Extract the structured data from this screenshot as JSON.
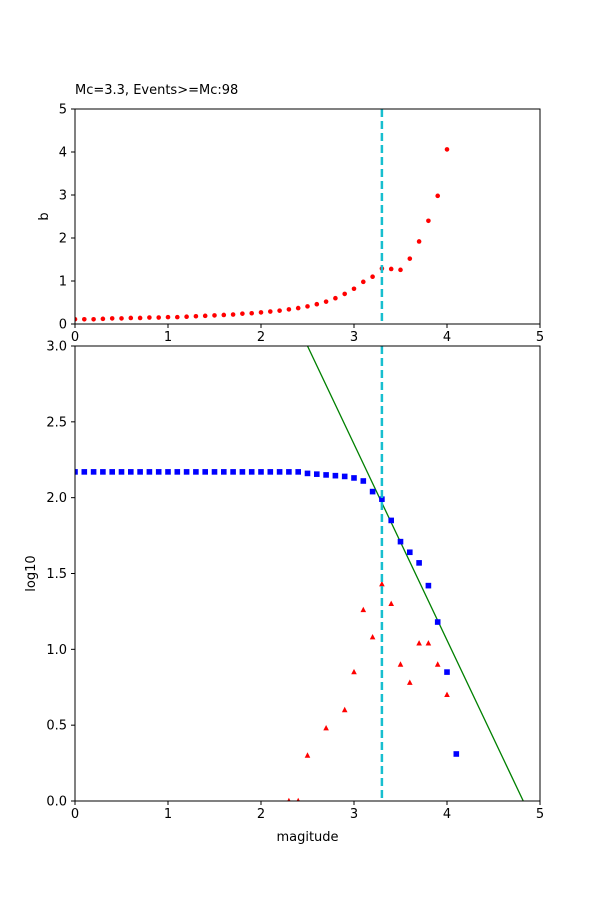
{
  "chart_data": [
    {
      "type": "scatter",
      "title": "Mc=3.3, Events>=Mc:98",
      "xlabel": "",
      "ylabel": "b",
      "xlim": [
        0,
        5
      ],
      "ylim": [
        0,
        5
      ],
      "xticks": [
        "0",
        "1",
        "2",
        "3",
        "4",
        "5"
      ],
      "yticks": [
        "0",
        "1",
        "2",
        "3",
        "4",
        "5"
      ],
      "grid": false,
      "mc_line": {
        "x": 3.3,
        "color": "#17becf",
        "style": "dashed"
      },
      "series": [
        {
          "marker": "circle",
          "color": "#ff0000",
          "points": [
            [
              0.0,
              0.11
            ],
            [
              0.1,
              0.11
            ],
            [
              0.2,
              0.11
            ],
            [
              0.3,
              0.12
            ],
            [
              0.4,
              0.13
            ],
            [
              0.5,
              0.13
            ],
            [
              0.6,
              0.14
            ],
            [
              0.7,
              0.14
            ],
            [
              0.8,
              0.15
            ],
            [
              0.9,
              0.15
            ],
            [
              1.0,
              0.16
            ],
            [
              1.1,
              0.16
            ],
            [
              1.2,
              0.17
            ],
            [
              1.3,
              0.18
            ],
            [
              1.4,
              0.19
            ],
            [
              1.5,
              0.2
            ],
            [
              1.6,
              0.21
            ],
            [
              1.7,
              0.22
            ],
            [
              1.8,
              0.24
            ],
            [
              1.9,
              0.25
            ],
            [
              2.0,
              0.27
            ],
            [
              2.1,
              0.29
            ],
            [
              2.2,
              0.31
            ],
            [
              2.3,
              0.34
            ],
            [
              2.4,
              0.37
            ],
            [
              2.5,
              0.41
            ],
            [
              2.6,
              0.46
            ],
            [
              2.7,
              0.52
            ],
            [
              2.8,
              0.6
            ],
            [
              2.9,
              0.7
            ],
            [
              3.0,
              0.82
            ],
            [
              3.1,
              0.98
            ],
            [
              3.2,
              1.1
            ],
            [
              3.3,
              1.29
            ],
            [
              3.4,
              1.28
            ],
            [
              3.5,
              1.26
            ],
            [
              3.6,
              1.52
            ],
            [
              3.7,
              1.92
            ],
            [
              3.8,
              2.4
            ],
            [
              3.9,
              2.98
            ],
            [
              4.0,
              4.06
            ]
          ]
        }
      ]
    },
    {
      "type": "scatter",
      "title": "",
      "xlabel": "magitude",
      "ylabel": "log10",
      "xlim": [
        0,
        5
      ],
      "ylim": [
        0,
        3
      ],
      "xticks": [
        "0",
        "1",
        "2",
        "3",
        "4",
        "5"
      ],
      "yticks": [
        "0.0",
        "0.5",
        "1.0",
        "1.5",
        "2.0",
        "2.5",
        "3.0"
      ],
      "grid": false,
      "mc_line": {
        "x": 3.3,
        "color": "#17becf",
        "style": "dashed"
      },
      "fit_line": {
        "color": "#008000",
        "points": [
          [
            2.5,
            3.0
          ],
          [
            4.82,
            0.0
          ]
        ]
      },
      "series": [
        {
          "marker": "square",
          "color": "#0000ff",
          "points": [
            [
              0.0,
              2.17
            ],
            [
              0.1,
              2.17
            ],
            [
              0.2,
              2.17
            ],
            [
              0.3,
              2.17
            ],
            [
              0.4,
              2.17
            ],
            [
              0.5,
              2.17
            ],
            [
              0.6,
              2.17
            ],
            [
              0.7,
              2.17
            ],
            [
              0.8,
              2.17
            ],
            [
              0.9,
              2.17
            ],
            [
              1.0,
              2.17
            ],
            [
              1.1,
              2.17
            ],
            [
              1.2,
              2.17
            ],
            [
              1.3,
              2.17
            ],
            [
              1.4,
              2.17
            ],
            [
              1.5,
              2.17
            ],
            [
              1.6,
              2.17
            ],
            [
              1.7,
              2.17
            ],
            [
              1.8,
              2.17
            ],
            [
              1.9,
              2.17
            ],
            [
              2.0,
              2.17
            ],
            [
              2.1,
              2.17
            ],
            [
              2.2,
              2.17
            ],
            [
              2.3,
              2.17
            ],
            [
              2.4,
              2.17
            ],
            [
              2.5,
              2.16
            ],
            [
              2.6,
              2.155
            ],
            [
              2.7,
              2.15
            ],
            [
              2.8,
              2.145
            ],
            [
              2.9,
              2.14
            ],
            [
              3.0,
              2.13
            ],
            [
              3.1,
              2.11
            ],
            [
              3.2,
              2.04
            ],
            [
              3.3,
              1.99
            ],
            [
              3.4,
              1.85
            ],
            [
              3.5,
              1.71
            ],
            [
              3.6,
              1.64
            ],
            [
              3.7,
              1.57
            ],
            [
              3.8,
              1.42
            ],
            [
              3.9,
              1.18
            ],
            [
              4.0,
              0.85
            ],
            [
              4.1,
              0.31
            ]
          ]
        },
        {
          "marker": "triangle",
          "color": "#ff0000",
          "points": [
            [
              2.3,
              0.0
            ],
            [
              2.4,
              0.0
            ],
            [
              2.5,
              0.3
            ],
            [
              2.7,
              0.48
            ],
            [
              2.9,
              0.6
            ],
            [
              3.0,
              0.85
            ],
            [
              3.1,
              1.26
            ],
            [
              3.2,
              1.08
            ],
            [
              3.3,
              1.43
            ],
            [
              3.4,
              1.3
            ],
            [
              3.5,
              0.9
            ],
            [
              3.6,
              0.78
            ],
            [
              3.7,
              1.04
            ],
            [
              3.8,
              1.04
            ],
            [
              3.9,
              0.9
            ],
            [
              4.0,
              0.7
            ]
          ]
        }
      ]
    }
  ]
}
